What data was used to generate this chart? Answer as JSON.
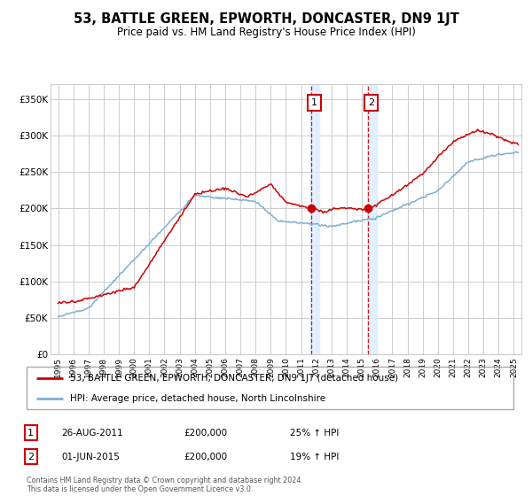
{
  "title": "53, BATTLE GREEN, EPWORTH, DONCASTER, DN9 1JT",
  "subtitle": "Price paid vs. HM Land Registry's House Price Index (HPI)",
  "ylabel_ticks": [
    "£0",
    "£50K",
    "£100K",
    "£150K",
    "£200K",
    "£250K",
    "£300K",
    "£350K"
  ],
  "ytick_values": [
    0,
    50000,
    100000,
    150000,
    200000,
    250000,
    300000,
    350000
  ],
  "ylim": [
    0,
    370000
  ],
  "xlim_start": 1994.5,
  "xlim_end": 2025.5,
  "transaction1_year": 2011.65,
  "transaction1_price": 200000,
  "transaction2_year": 2015.42,
  "transaction2_price": 200000,
  "legend_red_label": "53, BATTLE GREEN, EPWORTH, DONCASTER, DN9 1JT (detached house)",
  "legend_blue_label": "HPI: Average price, detached house, North Lincolnshire",
  "table_row1": [
    "1",
    "26-AUG-2011",
    "£200,000",
    "25% ↑ HPI"
  ],
  "table_row2": [
    "2",
    "01-JUN-2015",
    "£200,000",
    "19% ↑ HPI"
  ],
  "footer": "Contains HM Land Registry data © Crown copyright and database right 2024.\nThis data is licensed under the Open Government Licence v3.0.",
  "red_color": "#cc0000",
  "blue_color": "#7bafd4",
  "grid_color": "#cccccc",
  "highlight_color": "#ddeeff",
  "box_color": "#cc0000",
  "bg_color": "#ffffff"
}
